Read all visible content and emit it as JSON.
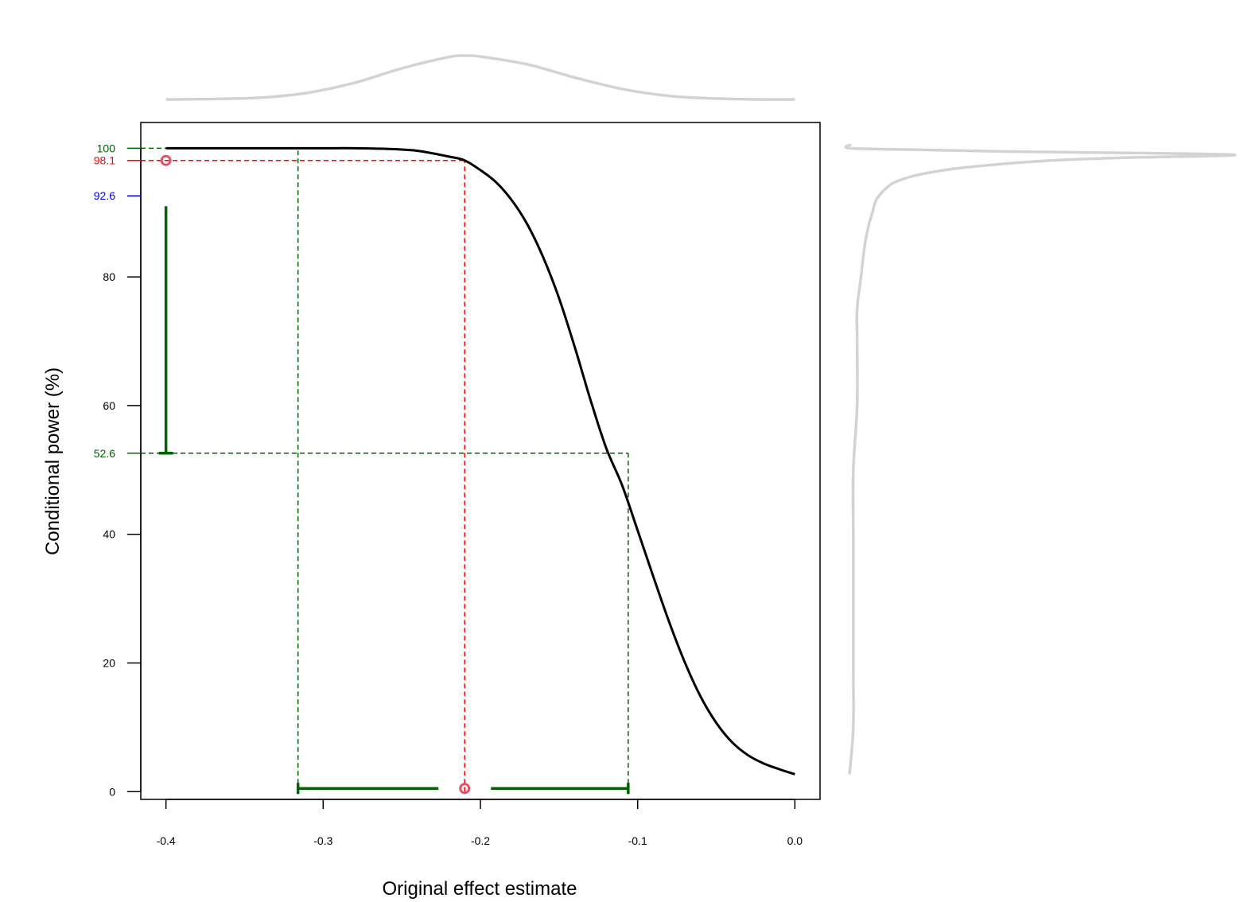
{
  "chart_data": {
    "type": "line",
    "title": "",
    "xlabel": "Original effect estimate",
    "ylabel": "Conditional power (%)",
    "xlim": [
      -0.416,
      0.016
    ],
    "ylim": [
      -1.2,
      104
    ],
    "x_ticks": [
      "-0.4",
      "-0.3",
      "-0.2",
      "-0.1",
      "0.0"
    ],
    "x_tick_values": [
      -0.4,
      -0.3,
      -0.2,
      -0.1,
      0.0
    ],
    "y_ticks": [
      "0",
      "20",
      "40",
      "60",
      "80"
    ],
    "y_tick_values": [
      0,
      20,
      40,
      60,
      80
    ],
    "grid": false,
    "legend": "none",
    "power_curve": {
      "x": [
        -0.4,
        -0.38,
        -0.36,
        -0.34,
        -0.32,
        -0.3,
        -0.28,
        -0.26,
        -0.24,
        -0.22,
        -0.21,
        -0.2,
        -0.19,
        -0.18,
        -0.17,
        -0.16,
        -0.15,
        -0.14,
        -0.13,
        -0.12,
        -0.11,
        -0.1,
        -0.09,
        -0.08,
        -0.07,
        -0.06,
        -0.05,
        -0.04,
        -0.03,
        -0.02,
        -0.01,
        0.0
      ],
      "y": [
        100,
        100,
        100,
        100,
        100,
        100,
        100,
        99.9,
        99.6,
        98.7,
        98.1,
        96.6,
        94.7,
        91.9,
        88.1,
        83.0,
        76.7,
        69.1,
        60.9,
        53.4,
        47.7,
        40.6,
        33.4,
        26.4,
        20.1,
        14.8,
        10.7,
        7.7,
        5.7,
        4.4,
        3.5,
        2.7
      ]
    },
    "point_estimate": {
      "x": -0.21,
      "power": 98.1,
      "label": "98.1",
      "color": "#df536b"
    },
    "power_interval": {
      "lower": 52.6,
      "upper": 100,
      "lower_label": "52.6",
      "upper_label": "100",
      "color": "#006400"
    },
    "effect_interval": {
      "lower": -0.316,
      "upper": -0.106,
      "color": "#006400"
    },
    "marked_power": {
      "value": 92.6,
      "label": "92.6",
      "color": "#0000ff"
    },
    "reference_line_color": "#ff0000",
    "curve_color": "#000000",
    "density_color": "#d3d3d3",
    "top_density": {
      "x": [
        -0.4,
        -0.37,
        -0.34,
        -0.31,
        -0.28,
        -0.25,
        -0.22,
        -0.21,
        -0.2,
        -0.17,
        -0.14,
        -0.11,
        -0.08,
        -0.05,
        -0.02,
        0.0
      ],
      "density": [
        0.0,
        0.01,
        0.04,
        0.15,
        0.38,
        0.71,
        0.97,
        1.0,
        0.98,
        0.8,
        0.5,
        0.24,
        0.08,
        0.02,
        0.0,
        0.0
      ]
    },
    "right_density": {
      "power": [
        2.7,
        10,
        20,
        30,
        40,
        50,
        60,
        70,
        75,
        80,
        85,
        88,
        90,
        92,
        94,
        95,
        96,
        97,
        98,
        98.5,
        99,
        99.5,
        99.8,
        100
      ],
      "density": [
        0.0,
        0.01,
        0.01,
        0.01,
        0.01,
        0.01,
        0.02,
        0.02,
        0.02,
        0.03,
        0.04,
        0.05,
        0.06,
        0.07,
        0.1,
        0.13,
        0.19,
        0.3,
        0.5,
        0.7,
        1.0,
        0.4,
        0.15,
        0.0
      ]
    }
  }
}
